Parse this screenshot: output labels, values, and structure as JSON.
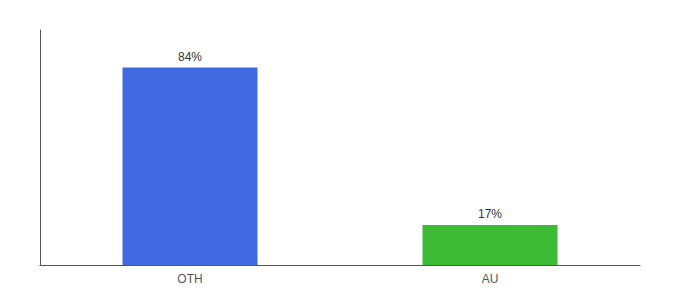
{
  "chart_data": {
    "type": "bar",
    "categories": [
      "OTH",
      "AU"
    ],
    "values": [
      84,
      17
    ],
    "value_labels": [
      "84%",
      "17%"
    ],
    "colors": [
      "#4169e1",
      "#3dbb35"
    ],
    "data_labels": true,
    "ylim": [
      0,
      100
    ],
    "tick_labels": "x",
    "grid": false
  }
}
